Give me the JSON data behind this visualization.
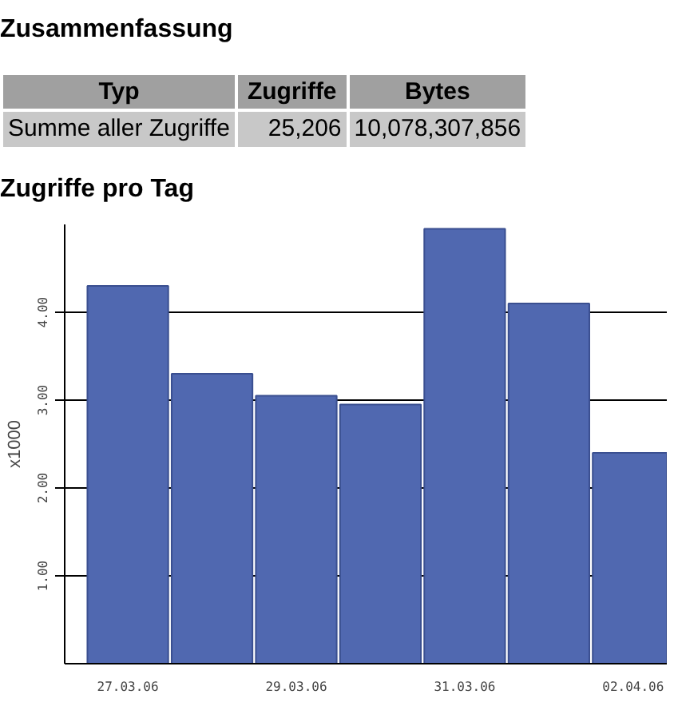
{
  "chart_data": {
    "type": "bar",
    "title": "Zugriffe pro Tag",
    "ylabel": "x1000",
    "annotations": [
      "Zusammenfassung",
      "Typ",
      "Zugriffe",
      "Bytes",
      "Summe aller Zugriffe",
      "25,206",
      "10,078,307,856"
    ],
    "categories": [
      "27.03.06",
      null,
      "29.03.06",
      null,
      "31.03.06",
      null,
      "02.04.06"
    ],
    "values": [
      4.3,
      3.3,
      3.05,
      2.95,
      4.95,
      4.1,
      2.4
    ],
    "color": "#5068b0",
    "ylim": [
      0,
      5.0
    ],
    "yticks": [
      {
        "value": 1,
        "label": "1.00"
      },
      {
        "value": 2,
        "label": "2.00"
      },
      {
        "value": 3,
        "label": "3.00"
      },
      {
        "value": 4,
        "label": "4.00"
      }
    ],
    "grid": "y"
  }
}
